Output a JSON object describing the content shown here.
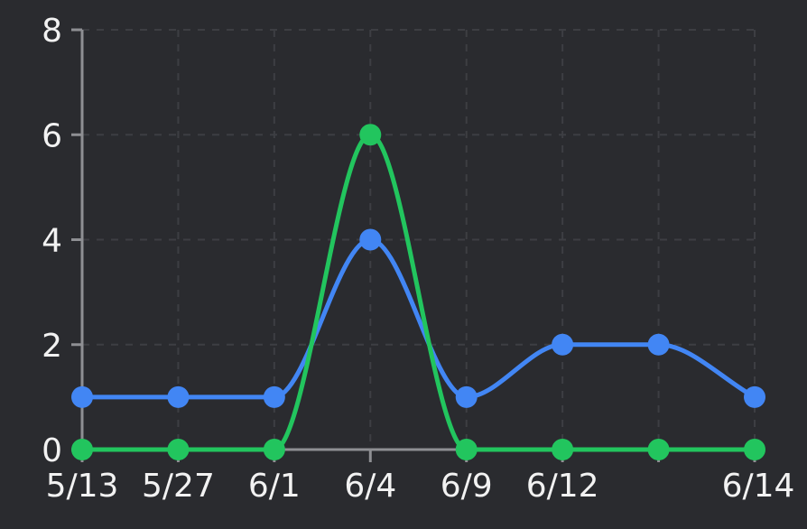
{
  "chart_data": {
    "type": "line",
    "categories": [
      "5/13",
      "5/27",
      "6/1",
      "6/4",
      "6/9",
      "6/12",
      "",
      "6/14"
    ],
    "series": [
      {
        "values": [
          1,
          1,
          1,
          4,
          1,
          2,
          2,
          1
        ],
        "color": "#4286f4"
      },
      {
        "values": [
          0,
          0,
          0,
          6,
          0,
          0,
          0,
          0
        ],
        "color": "#22c55e"
      }
    ],
    "y_ticks": [
      "0",
      "2",
      "4",
      "6",
      "8"
    ],
    "ylim": [
      0,
      8
    ],
    "grid": true,
    "smooth": true
  }
}
